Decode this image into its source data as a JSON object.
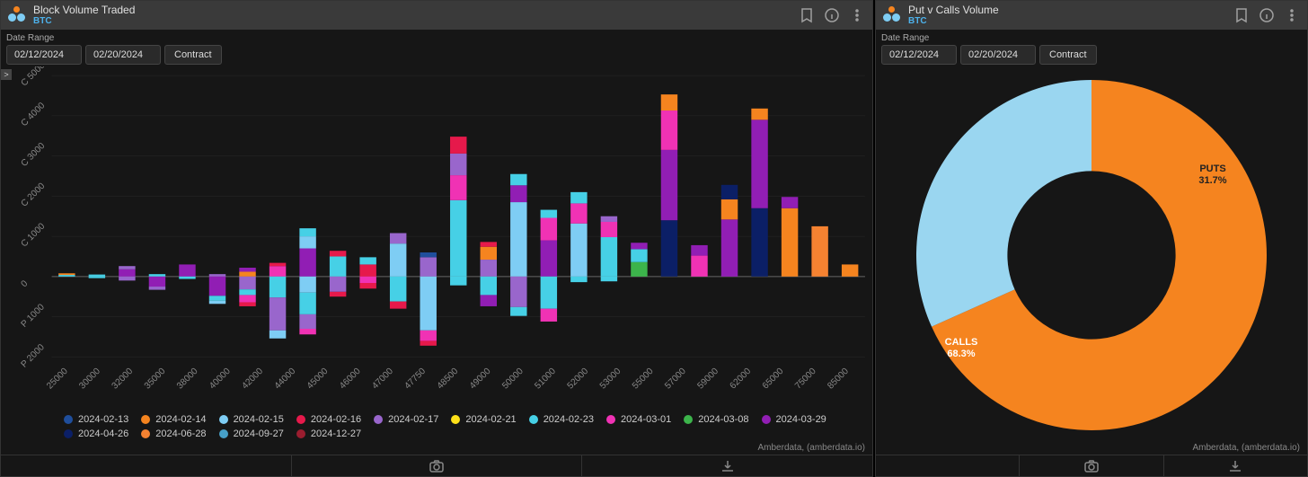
{
  "attribution": "Amberdata, (amberdata.io)",
  "left": {
    "title": "Block Volume Traded",
    "subtitle": "BTC",
    "date_range_label": "Date Range",
    "date_start": "02/12/2024",
    "date_end": "02/20/2024",
    "contract_btn": "Contract",
    "chart": {
      "type": "stacked-bar-diverging",
      "background": "#161616",
      "grid_color": "#2a2a2a",
      "axis_color": "#555555",
      "y_ticks": [
        "P 2000",
        "P 1000",
        "0",
        "C 1000",
        "C 2000",
        "C 3000",
        "C 4000",
        "C 5000"
      ],
      "y_values": [
        -2000,
        -1000,
        0,
        1000,
        2000,
        3000,
        4000,
        5000
      ],
      "x_ticks": [
        "25000",
        "30000",
        "32000",
        "35000",
        "38000",
        "40000",
        "42000",
        "44000",
        "45000",
        "46000",
        "47000",
        "47750",
        "48500",
        "49000",
        "50000",
        "51000",
        "52000",
        "53000",
        "55000",
        "57000",
        "59000",
        "62000",
        "65000",
        "75000",
        "85000"
      ],
      "series_order": [
        "2024-12-27",
        "2024-09-27",
        "2024-06-28",
        "2024-04-26",
        "2024-03-29",
        "2024-03-08",
        "2024-03-01",
        "2024-02-23",
        "2024-02-21",
        "2024-02-17",
        "2024-02-16",
        "2024-02-15",
        "2024-02-14",
        "2024-02-13"
      ],
      "series_colors": {
        "2024-02-13": "#1f4e9c",
        "2024-02-14": "#f5841f",
        "2024-02-15": "#7ecdf4",
        "2024-02-16": "#e6194b",
        "2024-02-17": "#9966cc",
        "2024-02-21": "#ffe119",
        "2024-02-23": "#46d0e6",
        "2024-03-01": "#f032b4",
        "2024-03-08": "#3cb44b",
        "2024-03-29": "#911eb4",
        "2024-04-26": "#0b1f66",
        "2024-06-28": "#f58231",
        "2024-09-27": "#46a0c8",
        "2024-12-27": "#9a1d2f"
      },
      "bars": [
        {
          "x": "25000",
          "up": [
            [
              "2024-02-23",
              40
            ],
            [
              "2024-02-14",
              40
            ]
          ],
          "dn": []
        },
        {
          "x": "30000",
          "up": [
            [
              "2024-02-23",
              50
            ]
          ],
          "dn": [
            [
              "2024-02-23",
              40
            ]
          ]
        },
        {
          "x": "32000",
          "up": [
            [
              "2024-03-29",
              180
            ],
            [
              "2024-02-17",
              80
            ]
          ],
          "dn": [
            [
              "2024-02-17",
              100
            ]
          ]
        },
        {
          "x": "35000",
          "up": [
            [
              "2024-02-23",
              60
            ]
          ],
          "dn": [
            [
              "2024-03-29",
              250
            ],
            [
              "2024-02-17",
              80
            ]
          ]
        },
        {
          "x": "38000",
          "up": [
            [
              "2024-03-29",
              300
            ]
          ],
          "dn": [
            [
              "2024-02-23",
              60
            ]
          ]
        },
        {
          "x": "40000",
          "up": [
            [
              "2024-02-17",
              60
            ]
          ],
          "dn": [
            [
              "2024-03-29",
              480
            ],
            [
              "2024-02-23",
              120
            ],
            [
              "2024-02-15",
              80
            ]
          ]
        },
        {
          "x": "42000",
          "up": [
            [
              "2024-02-14",
              120
            ],
            [
              "2024-03-29",
              100
            ]
          ],
          "dn": [
            [
              "2024-02-17",
              320
            ],
            [
              "2024-02-23",
              140
            ],
            [
              "2024-03-01",
              180
            ],
            [
              "2024-02-16",
              100
            ]
          ]
        },
        {
          "x": "44000",
          "up": [
            [
              "2024-03-01",
              260
            ],
            [
              "2024-02-16",
              80
            ]
          ],
          "dn": [
            [
              "2024-02-23",
              520
            ],
            [
              "2024-02-17",
              820
            ],
            [
              "2024-02-15",
              200
            ]
          ]
        },
        {
          "x": "45000",
          "up": [
            [
              "2024-03-29",
              700
            ],
            [
              "2024-02-15",
              300
            ],
            [
              "2024-02-23",
              200
            ]
          ],
          "dn": [
            [
              "2024-02-15",
              400
            ],
            [
              "2024-02-23",
              540
            ],
            [
              "2024-02-17",
              360
            ],
            [
              "2024-03-01",
              140
            ]
          ]
        },
        {
          "x": "46000",
          "up": [
            [
              "2024-02-23",
              500
            ],
            [
              "2024-02-16",
              140
            ]
          ],
          "dn": [
            [
              "2024-02-17",
              380
            ],
            [
              "2024-02-16",
              120
            ]
          ]
        },
        {
          "x": "47000",
          "up": [
            [
              "2024-02-16",
              300
            ],
            [
              "2024-02-23",
              180
            ]
          ],
          "dn": [
            [
              "2024-03-01",
              160
            ],
            [
              "2024-02-16",
              140
            ]
          ]
        },
        {
          "x": "47750",
          "up": [
            [
              "2024-02-15",
              820
            ],
            [
              "2024-02-17",
              260
            ]
          ],
          "dn": [
            [
              "2024-02-23",
              620
            ],
            [
              "2024-02-16",
              180
            ]
          ]
        },
        {
          "x": "48500",
          "up": [
            [
              "2024-02-17",
              480
            ],
            [
              "2024-02-13",
              120
            ]
          ],
          "dn": [
            [
              "2024-02-15",
              1340
            ],
            [
              "2024-03-01",
              260
            ],
            [
              "2024-02-16",
              120
            ]
          ]
        },
        {
          "x": "49000",
          "up": [
            [
              "2024-02-23",
              1900
            ],
            [
              "2024-03-01",
              620
            ],
            [
              "2024-02-17",
              540
            ],
            [
              "2024-02-16",
              420
            ]
          ],
          "dn": [
            [
              "2024-02-23",
              220
            ]
          ]
        },
        {
          "x": "50000",
          "up": [
            [
              "2024-02-17",
              420
            ],
            [
              "2024-02-14",
              320
            ],
            [
              "2024-02-16",
              120
            ]
          ],
          "dn": [
            [
              "2024-02-23",
              460
            ],
            [
              "2024-03-29",
              280
            ]
          ]
        },
        {
          "x": "51000",
          "up": [
            [
              "2024-02-15",
              1850
            ],
            [
              "2024-03-29",
              420
            ],
            [
              "2024-02-23",
              280
            ]
          ],
          "dn": [
            [
              "2024-02-17",
              760
            ],
            [
              "2024-02-23",
              220
            ]
          ]
        },
        {
          "x": "52000",
          "up": [
            [
              "2024-03-29",
              900
            ],
            [
              "2024-03-01",
              560
            ],
            [
              "2024-02-23",
              200
            ]
          ],
          "dn": [
            [
              "2024-02-23",
              800
            ],
            [
              "2024-03-01",
              320
            ]
          ]
        },
        {
          "x": "53000",
          "up": [
            [
              "2024-02-15",
              1320
            ],
            [
              "2024-03-01",
              500
            ],
            [
              "2024-02-23",
              280
            ]
          ],
          "dn": [
            [
              "2024-02-23",
              140
            ]
          ]
        },
        {
          "x": "55000",
          "up": [
            [
              "2024-02-23",
              980
            ],
            [
              "2024-03-01",
              380
            ],
            [
              "2024-02-17",
              140
            ]
          ],
          "dn": [
            [
              "2024-02-23",
              120
            ]
          ]
        },
        {
          "x": "57000",
          "up": [
            [
              "2024-03-08",
              360
            ],
            [
              "2024-02-23",
              320
            ],
            [
              "2024-03-29",
              160
            ]
          ],
          "dn": []
        },
        {
          "x": "59000",
          "up": [
            [
              "2024-04-26",
              1400
            ],
            [
              "2024-03-29",
              1750
            ],
            [
              "2024-03-01",
              980
            ],
            [
              "2024-02-14",
              400
            ]
          ],
          "dn": []
        },
        {
          "x": "62000",
          "up": [
            [
              "2024-03-01",
              520
            ],
            [
              "2024-03-29",
              260
            ]
          ],
          "dn": []
        },
        {
          "x": "65000",
          "up": [
            [
              "2024-03-29",
              1420
            ],
            [
              "2024-02-14",
              500
            ],
            [
              "2024-04-26",
              360
            ]
          ],
          "dn": []
        },
        {
          "x": "75000",
          "up": [
            [
              "2024-04-26",
              1700
            ],
            [
              "2024-03-29",
              2200
            ],
            [
              "2024-02-14",
              280
            ]
          ],
          "dn": []
        },
        {
          "x": "75000b",
          "up": [
            [
              "2024-02-14",
              1700
            ],
            [
              "2024-03-29",
              280
            ]
          ],
          "dn": []
        },
        {
          "x": "85000",
          "up": [
            [
              "2024-06-28",
              1250
            ]
          ],
          "dn": []
        },
        {
          "x": "85000b",
          "up": [
            [
              "2024-02-14",
              300
            ]
          ],
          "dn": []
        }
      ],
      "legend": [
        "2024-02-13",
        "2024-02-14",
        "2024-02-15",
        "2024-02-16",
        "2024-02-17",
        "2024-02-21",
        "2024-02-23",
        "2024-03-01",
        "2024-03-08",
        "2024-03-29",
        "2024-04-26",
        "2024-06-28",
        "2024-09-27",
        "2024-12-27"
      ]
    }
  },
  "right": {
    "title": "Put v Calls Volume",
    "subtitle": "BTC",
    "date_range_label": "Date Range",
    "date_start": "02/12/2024",
    "date_end": "02/20/2024",
    "contract_btn": "Contract",
    "donut": {
      "type": "donut",
      "background": "#161616",
      "inner_ratio": 0.48,
      "slices": [
        {
          "label": "CALLS",
          "pct": 68.3,
          "color": "#f5841f",
          "text_color": "#ffffff"
        },
        {
          "label": "PUTS",
          "pct": 31.7,
          "color": "#9ad6f0",
          "text_color": "#222222"
        }
      ]
    }
  }
}
